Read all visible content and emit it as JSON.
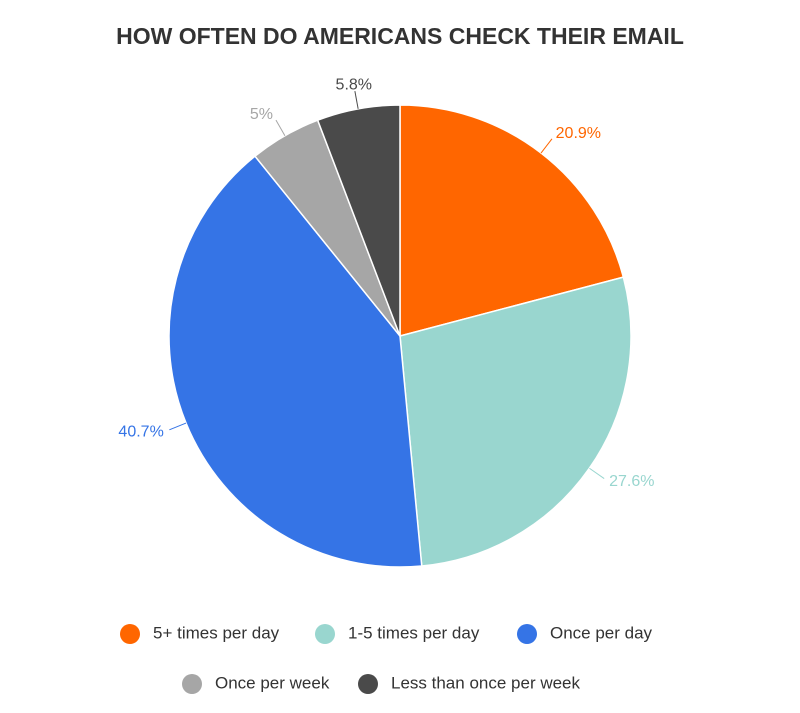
{
  "chart_data": {
    "type": "pie",
    "title": "HOW OFTEN DO AMERICANS CHECK THEIR EMAIL",
    "categories": [
      "5+ times per day",
      "1-5 times per day",
      "Once per day",
      "Once per week",
      "Less than once per week"
    ],
    "values": [
      20.9,
      27.6,
      40.7,
      5,
      5.8
    ],
    "value_labels": [
      "20.9%",
      "27.6%",
      "40.7%",
      "5%",
      "5.8%"
    ],
    "colors": [
      "#ff6600",
      "#99d6cf",
      "#3574e6",
      "#a6a6a6",
      "#4a4a4a"
    ]
  }
}
